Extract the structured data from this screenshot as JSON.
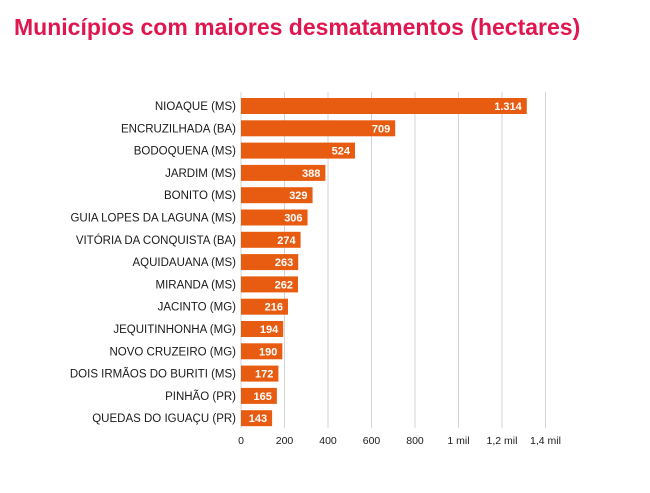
{
  "chart_data": {
    "type": "bar",
    "orientation": "horizontal",
    "title": "Municípios com maiores desmatamentos (hectares)",
    "xlabel": "",
    "ylabel": "",
    "xlim": [
      0,
      1400
    ],
    "grid": true,
    "categories": [
      "NIOAQUE (MS)",
      "ENCRUZILHADA (BA)",
      "BODOQUENA (MS)",
      "JARDIM (MS)",
      "BONITO (MS)",
      "GUIA LOPES DA LAGUNA (MS)",
      "VITÓRIA DA CONQUISTA (BA)",
      "AQUIDAUANA (MS)",
      "MIRANDA (MS)",
      "JACINTO (MG)",
      "JEQUITINHONHA (MG)",
      "NOVO CRUZEIRO (MG)",
      "DOIS IRMÃOS DO BURITI (MS)",
      "PINHÃO (PR)",
      "QUEDAS DO IGUAÇU (PR)"
    ],
    "values": [
      1314,
      709,
      524,
      388,
      329,
      306,
      274,
      263,
      262,
      216,
      194,
      190,
      172,
      165,
      143
    ],
    "value_labels": [
      "1.314",
      "709",
      "524",
      "388",
      "329",
      "306",
      "274",
      "263",
      "262",
      "216",
      "194",
      "190",
      "172",
      "165",
      "143"
    ],
    "x_ticks": [
      0,
      200,
      400,
      600,
      800,
      1000,
      1200,
      1400
    ],
    "x_tick_labels": [
      "0",
      "200",
      "400",
      "600",
      "800",
      "1 mil",
      "1,2 mil",
      "1,4 mil"
    ]
  },
  "colors": {
    "title": "#e0174f",
    "bar": "#e85c12",
    "grid": "#d4d4d4",
    "text": "#1a1a1a"
  }
}
